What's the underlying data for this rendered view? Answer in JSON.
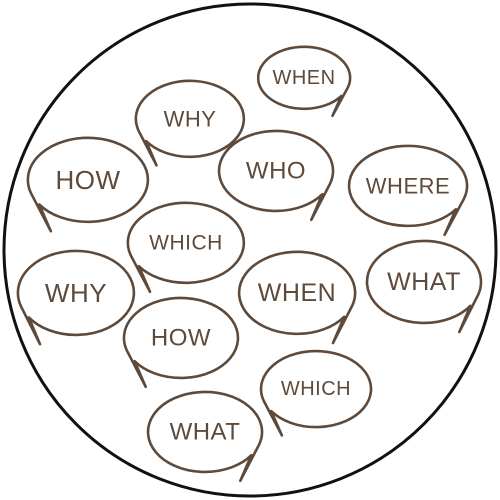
{
  "colors": {
    "ink": "#5e4a3b",
    "circle_border": "#111111",
    "bubble_fill": "#ffffff",
    "background": "#ffffff"
  },
  "bubbles": [
    {
      "word": "WHEN",
      "tail": "right"
    },
    {
      "word": "WHY",
      "tail": "left"
    },
    {
      "word": "WHO",
      "tail": "right"
    },
    {
      "word": "HOW",
      "tail": "left"
    },
    {
      "word": "WHERE",
      "tail": "right"
    },
    {
      "word": "WHICH",
      "tail": "left"
    },
    {
      "word": "WHY",
      "tail": "left"
    },
    {
      "word": "WHEN",
      "tail": "right"
    },
    {
      "word": "WHAT",
      "tail": "right"
    },
    {
      "word": "HOW",
      "tail": "left"
    },
    {
      "word": "WHICH",
      "tail": "left"
    },
    {
      "word": "WHAT",
      "tail": "right"
    }
  ]
}
